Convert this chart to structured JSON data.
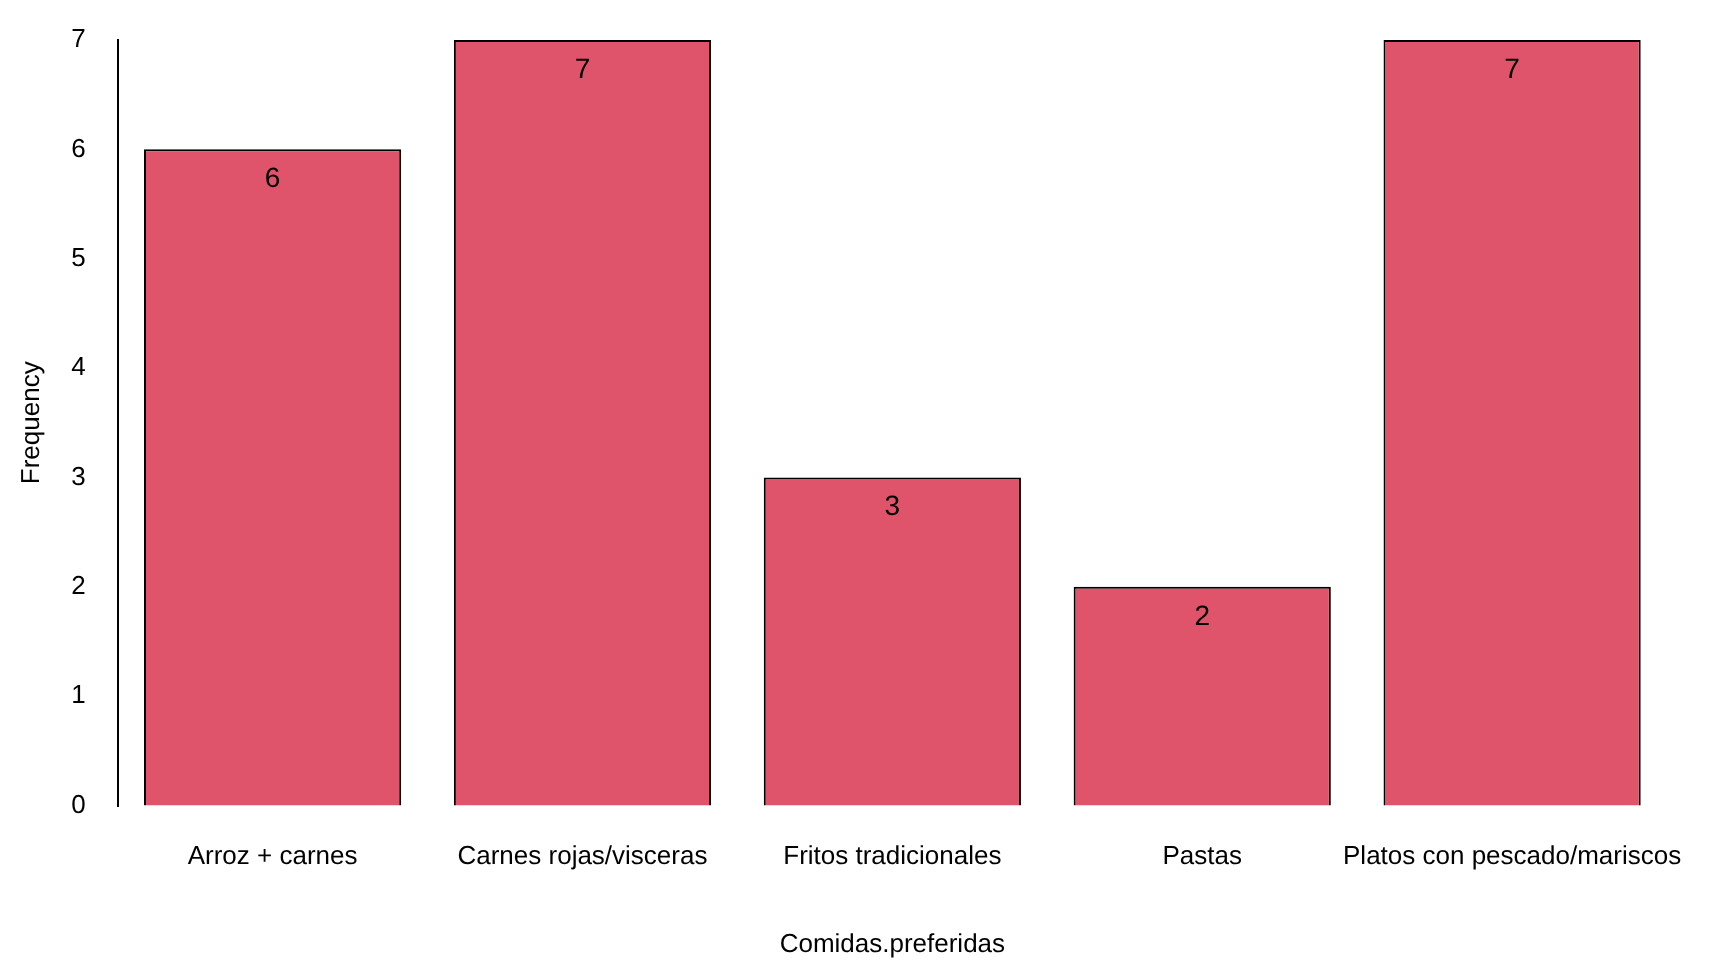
{
  "chart_data": {
    "type": "bar",
    "xlabel": "Comidas.preferidas",
    "ylabel": "Frequency",
    "categories": [
      "Arroz + carnes",
      "Carnes rojas/visceras",
      "Fritos tradicionales",
      "Pastas",
      "Platos con pescado/mariscos"
    ],
    "values": [
      6,
      7,
      3,
      2,
      7
    ],
    "color": "#df536b",
    "ylim": [
      0,
      7
    ],
    "yticks": [
      0,
      1,
      2,
      3,
      4,
      5,
      6,
      7
    ],
    "grid": false,
    "data_labels": true,
    "legend": false
  }
}
